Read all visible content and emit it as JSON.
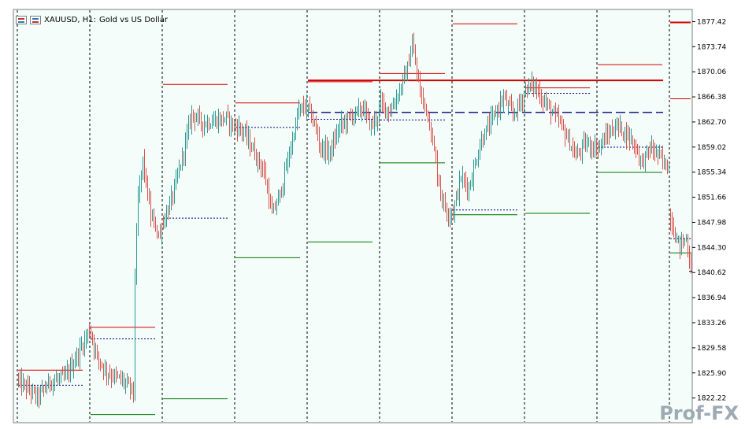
{
  "header": {
    "symbol": "XAUUSD, H1:",
    "description": "Gold vs US Dollar"
  },
  "watermark": "Prof-FX",
  "colors": {
    "background": "#f4fdf9",
    "bull": "#2b9b94",
    "bear": "#d9534f",
    "resistance": "#d40000",
    "support": "#007700",
    "pivot": "#000080",
    "separator": "#000000"
  },
  "chart_data": {
    "type": "candlestick",
    "title": "",
    "ylim": [
      1818.6,
      1879.2
    ],
    "y_ticks": [
      "1877.42",
      "1873.74",
      "1870.06",
      "1866.38",
      "1862.70",
      "1859.02",
      "1855.34",
      "1851.66",
      "1847.98",
      "1844.30",
      "1840.62",
      "1836.94",
      "1833.26",
      "1829.58",
      "1825.90",
      "1822.22"
    ],
    "current_price": 1840.8,
    "sessions": [
      {
        "start": 1825.3,
        "candles": 46,
        "pivot": 1824.1,
        "high": 1826.3,
        "low": null,
        "knots": [
          [
            0,
            1824.6
          ],
          [
            6,
            1823.6
          ],
          [
            12,
            1822.3
          ],
          [
            20,
            1824.6
          ],
          [
            30,
            1825.3
          ],
          [
            40,
            1829.7
          ],
          [
            45,
            1832.2
          ]
        ]
      },
      {
        "start": 1831.7,
        "candles": 46,
        "pivot": 1830.9,
        "high": 1832.6,
        "low": 1819.8,
        "knots": [
          [
            0,
            1831.7
          ],
          [
            4,
            1828.2
          ],
          [
            10,
            1826.0
          ],
          [
            20,
            1824.8
          ],
          [
            27,
            1823.2
          ],
          [
            28,
            1840.0
          ],
          [
            30,
            1851.6
          ],
          [
            33,
            1857.0
          ],
          [
            38,
            1848.9
          ],
          [
            44,
            1845.8
          ],
          [
            45,
            1847.8
          ]
        ]
      },
      {
        "start": 1847.9,
        "candles": 46,
        "pivot": 1848.6,
        "high": 1868.2,
        "low": 1822.1,
        "knots": [
          [
            0,
            1847.9
          ],
          [
            6,
            1852.0
          ],
          [
            12,
            1857.5
          ],
          [
            18,
            1864.0
          ],
          [
            25,
            1862.5
          ],
          [
            32,
            1862.8
          ],
          [
            40,
            1863.3
          ],
          [
            45,
            1862.0
          ]
        ]
      },
      {
        "start": 1862.2,
        "candles": 46,
        "pivot": 1861.9,
        "high": 1865.5,
        "low": 1842.8,
        "knots": [
          [
            0,
            1862.2
          ],
          [
            5,
            1861.3
          ],
          [
            12,
            1858.1
          ],
          [
            18,
            1855.3
          ],
          [
            23,
            1849.1
          ],
          [
            28,
            1852.0
          ],
          [
            34,
            1858.1
          ],
          [
            40,
            1864.4
          ],
          [
            45,
            1865.0
          ]
        ]
      },
      {
        "start": 1864.8,
        "candles": 46,
        "pivot": 1863.1,
        "high": 1868.6,
        "low": 1845.1,
        "knots": [
          [
            0,
            1864.8
          ],
          [
            4,
            1862.3
          ],
          [
            8,
            1858.9
          ],
          [
            14,
            1858.3
          ],
          [
            20,
            1862.1
          ],
          [
            28,
            1863.7
          ],
          [
            35,
            1864.7
          ],
          [
            40,
            1862.0
          ],
          [
            45,
            1864.2
          ]
        ]
      },
      {
        "start": 1865.5,
        "candles": 46,
        "pivot": 1863.0,
        "high": 1869.8,
        "low": 1856.7,
        "knots": [
          [
            0,
            1865.5
          ],
          [
            6,
            1864.2
          ],
          [
            12,
            1867.4
          ],
          [
            17,
            1870.6
          ],
          [
            20,
            1874.2
          ],
          [
            25,
            1867.0
          ],
          [
            30,
            1863.9
          ],
          [
            34,
            1858.4
          ],
          [
            38,
            1852.3
          ],
          [
            42,
            1849.5
          ],
          [
            45,
            1849.6
          ]
        ]
      },
      {
        "start": 1849.5,
        "candles": 46,
        "pivot": 1849.8,
        "high": 1877.1,
        "low": 1849.1,
        "knots": [
          [
            0,
            1849.5
          ],
          [
            5,
            1854.6
          ],
          [
            10,
            1853.0
          ],
          [
            18,
            1860.1
          ],
          [
            25,
            1863.2
          ],
          [
            32,
            1866.3
          ],
          [
            38,
            1863.7
          ],
          [
            45,
            1866.5
          ]
        ]
      },
      {
        "start": 1867.5,
        "candles": 46,
        "pivot": 1866.9,
        "high": 1867.7,
        "low": 1849.3,
        "knots": [
          [
            0,
            1867.5
          ],
          [
            5,
            1868.2
          ],
          [
            10,
            1866.3
          ],
          [
            16,
            1864.4
          ],
          [
            22,
            1862.5
          ],
          [
            27,
            1860.1
          ],
          [
            32,
            1857.6
          ],
          [
            38,
            1859.5
          ],
          [
            45,
            1858.9
          ]
        ]
      },
      {
        "start": 1858.9,
        "candles": 46,
        "pivot": 1859.0,
        "high": 1871.1,
        "low": 1855.3,
        "knots": [
          [
            0,
            1858.9
          ],
          [
            6,
            1860.8
          ],
          [
            12,
            1862.2
          ],
          [
            17,
            1861.2
          ],
          [
            22,
            1859.9
          ],
          [
            28,
            1856.7
          ],
          [
            33,
            1858.9
          ],
          [
            38,
            1857.9
          ],
          [
            42,
            1856.6
          ],
          [
            45,
            1856.0
          ]
        ]
      },
      {
        "start": 1848.8,
        "candles": 14,
        "pivot": 1845.6,
        "high": 1866.1,
        "low": 1843.5,
        "knots": [
          [
            0,
            1848.8
          ],
          [
            3,
            1846.0
          ],
          [
            6,
            1844.6
          ],
          [
            10,
            1845.6
          ],
          [
            13,
            1841.3
          ]
        ]
      }
    ],
    "multi_day_levels": [
      {
        "kind": "resistance",
        "price": 1868.8,
        "from_session": 4,
        "to_session": 8
      },
      {
        "kind": "pivot",
        "price": 1864.1,
        "from_session": 4,
        "to_session": 8
      },
      {
        "kind": "resistance",
        "price": 1877.3,
        "from_session": 9,
        "to_session": 9
      }
    ]
  }
}
